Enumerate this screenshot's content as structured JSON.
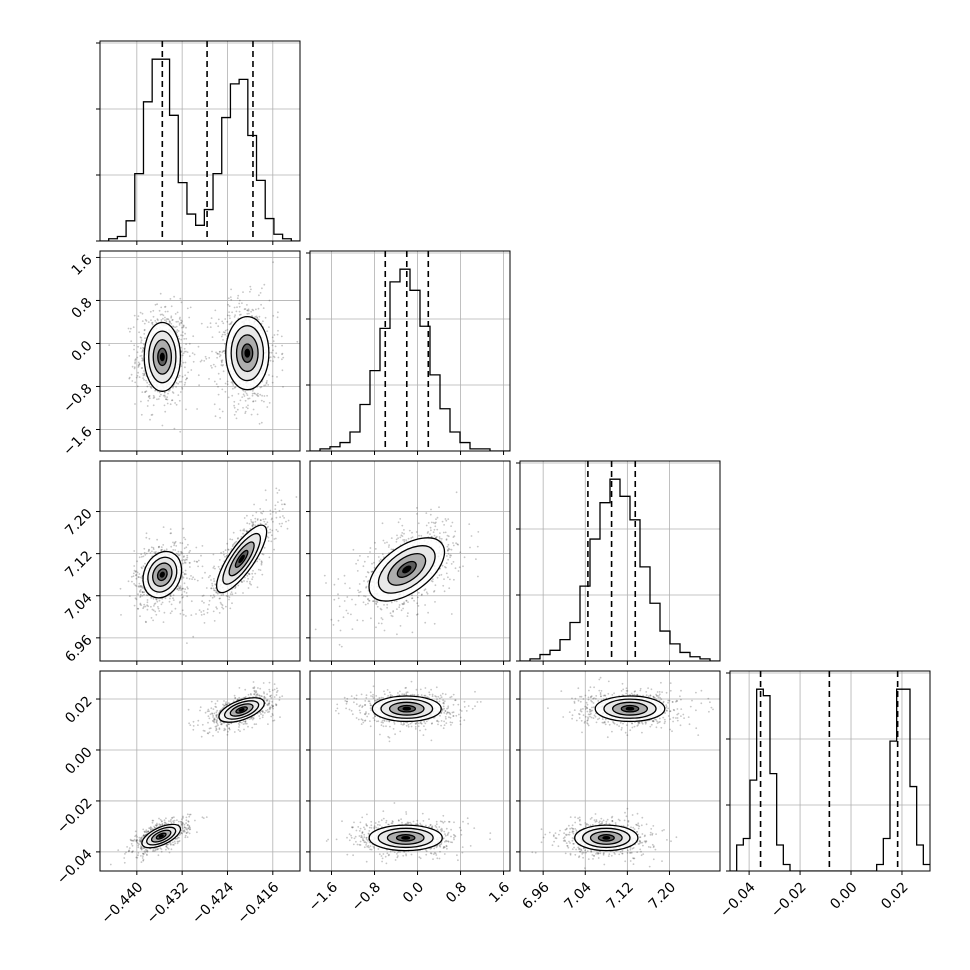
{
  "chart_data": {
    "type": "corner_plot",
    "n_params": 4,
    "grid": true,
    "colors": {
      "line": "#000000",
      "grid": "#b0b0b0",
      "points": "#333333",
      "background": "#ffffff"
    },
    "params": [
      {
        "name": "",
        "range": [
          -0.4465,
          -0.4112
        ],
        "ticks": [
          -0.44,
          -0.432,
          -0.424,
          -0.416
        ],
        "tick_labels": [
          "−0.440",
          "−0.432",
          "−0.424",
          "−0.416"
        ],
        "quantiles": [
          -0.4355,
          -0.4276,
          -0.4195
        ],
        "hist": {
          "edges_min": -0.4465,
          "edges_max": -0.4112,
          "counts": [
            0,
            1,
            2,
            9,
            30,
            62,
            81,
            81,
            56,
            26,
            12,
            7,
            14,
            30,
            55,
            70,
            72,
            47,
            27,
            10,
            3,
            1,
            0
          ]
        }
      },
      {
        "name": "",
        "range": [
          -2.0,
          1.72
        ],
        "ticks": [
          -1.6,
          -0.8,
          0.0,
          0.8,
          1.6
        ],
        "tick_labels": [
          "−1.6",
          "−0.8",
          "0.0",
          "0.8",
          "1.6"
        ],
        "quantiles": [
          -0.6,
          -0.2,
          0.2
        ],
        "hist": {
          "edges_min": -2.0,
          "edges_max": 1.72,
          "counts": [
            0,
            1,
            2,
            4,
            9,
            22,
            38,
            58,
            80,
            86,
            76,
            59,
            36,
            20,
            9,
            4,
            1,
            1,
            0,
            0
          ]
        }
      },
      {
        "name": "",
        "range": [
          6.916,
          7.296
        ],
        "ticks": [
          6.96,
          7.04,
          7.12,
          7.2
        ],
        "tick_labels": [
          "6.96",
          "7.04",
          "7.12",
          "7.20"
        ],
        "quantiles": [
          7.045,
          7.09,
          7.135
        ],
        "hist": {
          "edges_min": 6.916,
          "edges_max": 7.296,
          "counts": [
            0,
            1,
            3,
            5,
            10,
            18,
            35,
            57,
            74,
            85,
            77,
            66,
            44,
            27,
            14,
            8,
            4,
            2,
            1,
            0
          ]
        }
      },
      {
        "name": "",
        "range": [
          -0.0475,
          0.031
        ],
        "ticks": [
          -0.04,
          -0.02,
          0.0,
          0.02
        ],
        "tick_labels": [
          "−0.04",
          "−0.02",
          "0.00",
          "0.02"
        ],
        "quantiles": [
          -0.0355,
          -0.0085,
          0.0183
        ],
        "hist": {
          "edges_min": -0.0475,
          "edges_max": 0.031,
          "counts": [
            0,
            4,
            5,
            14,
            28,
            27,
            15,
            4,
            1,
            0,
            0,
            0,
            0,
            0,
            0,
            0,
            0,
            0,
            0,
            0,
            0,
            0,
            1,
            5,
            20,
            28,
            28,
            13,
            4,
            1
          ]
        }
      }
    ],
    "pairs": [
      {
        "row": 1,
        "col": 0,
        "components": [
          {
            "mx": -0.4355,
            "my": -0.25,
            "sx": 0.0016,
            "sy": 0.32,
            "r": 0.0
          },
          {
            "mx": -0.4205,
            "my": -0.18,
            "sx": 0.0019,
            "sy": 0.34,
            "r": 0.0
          }
        ]
      },
      {
        "row": 2,
        "col": 0,
        "components": [
          {
            "mx": -0.4355,
            "my": 7.08,
            "sx": 0.0017,
            "sy": 0.022,
            "r": 0.2
          },
          {
            "mx": -0.4215,
            "my": 7.11,
            "sx": 0.0022,
            "sy": 0.032,
            "r": 0.8
          }
        ]
      },
      {
        "row": 2,
        "col": 1,
        "components": [
          {
            "mx": -0.2,
            "my": 7.09,
            "sx": 0.35,
            "sy": 0.03,
            "r": 0.55
          }
        ]
      },
      {
        "row": 3,
        "col": 0,
        "components": [
          {
            "mx": -0.4357,
            "my": -0.0338,
            "sx": 0.0017,
            "sy": 0.0023,
            "r": 0.6
          },
          {
            "mx": -0.4215,
            "my": 0.0157,
            "sx": 0.002,
            "sy": 0.0024,
            "r": 0.55
          }
        ]
      },
      {
        "row": 3,
        "col": 1,
        "components": [
          {
            "mx": -0.2,
            "my": 0.0162,
            "sx": 0.32,
            "sy": 0.0025,
            "r": 0.0
          },
          {
            "mx": -0.22,
            "my": -0.0345,
            "sx": 0.34,
            "sy": 0.0025,
            "r": 0.0
          }
        ]
      },
      {
        "row": 3,
        "col": 2,
        "components": [
          {
            "mx": 7.125,
            "my": 0.0162,
            "sx": 0.033,
            "sy": 0.0025,
            "r": 0.0
          },
          {
            "mx": 7.08,
            "my": -0.0345,
            "sx": 0.03,
            "sy": 0.0025,
            "r": 0.0
          }
        ]
      }
    ],
    "contour_levels_sigma": [
      0.5,
      1.0,
      1.5,
      2.0
    ]
  }
}
